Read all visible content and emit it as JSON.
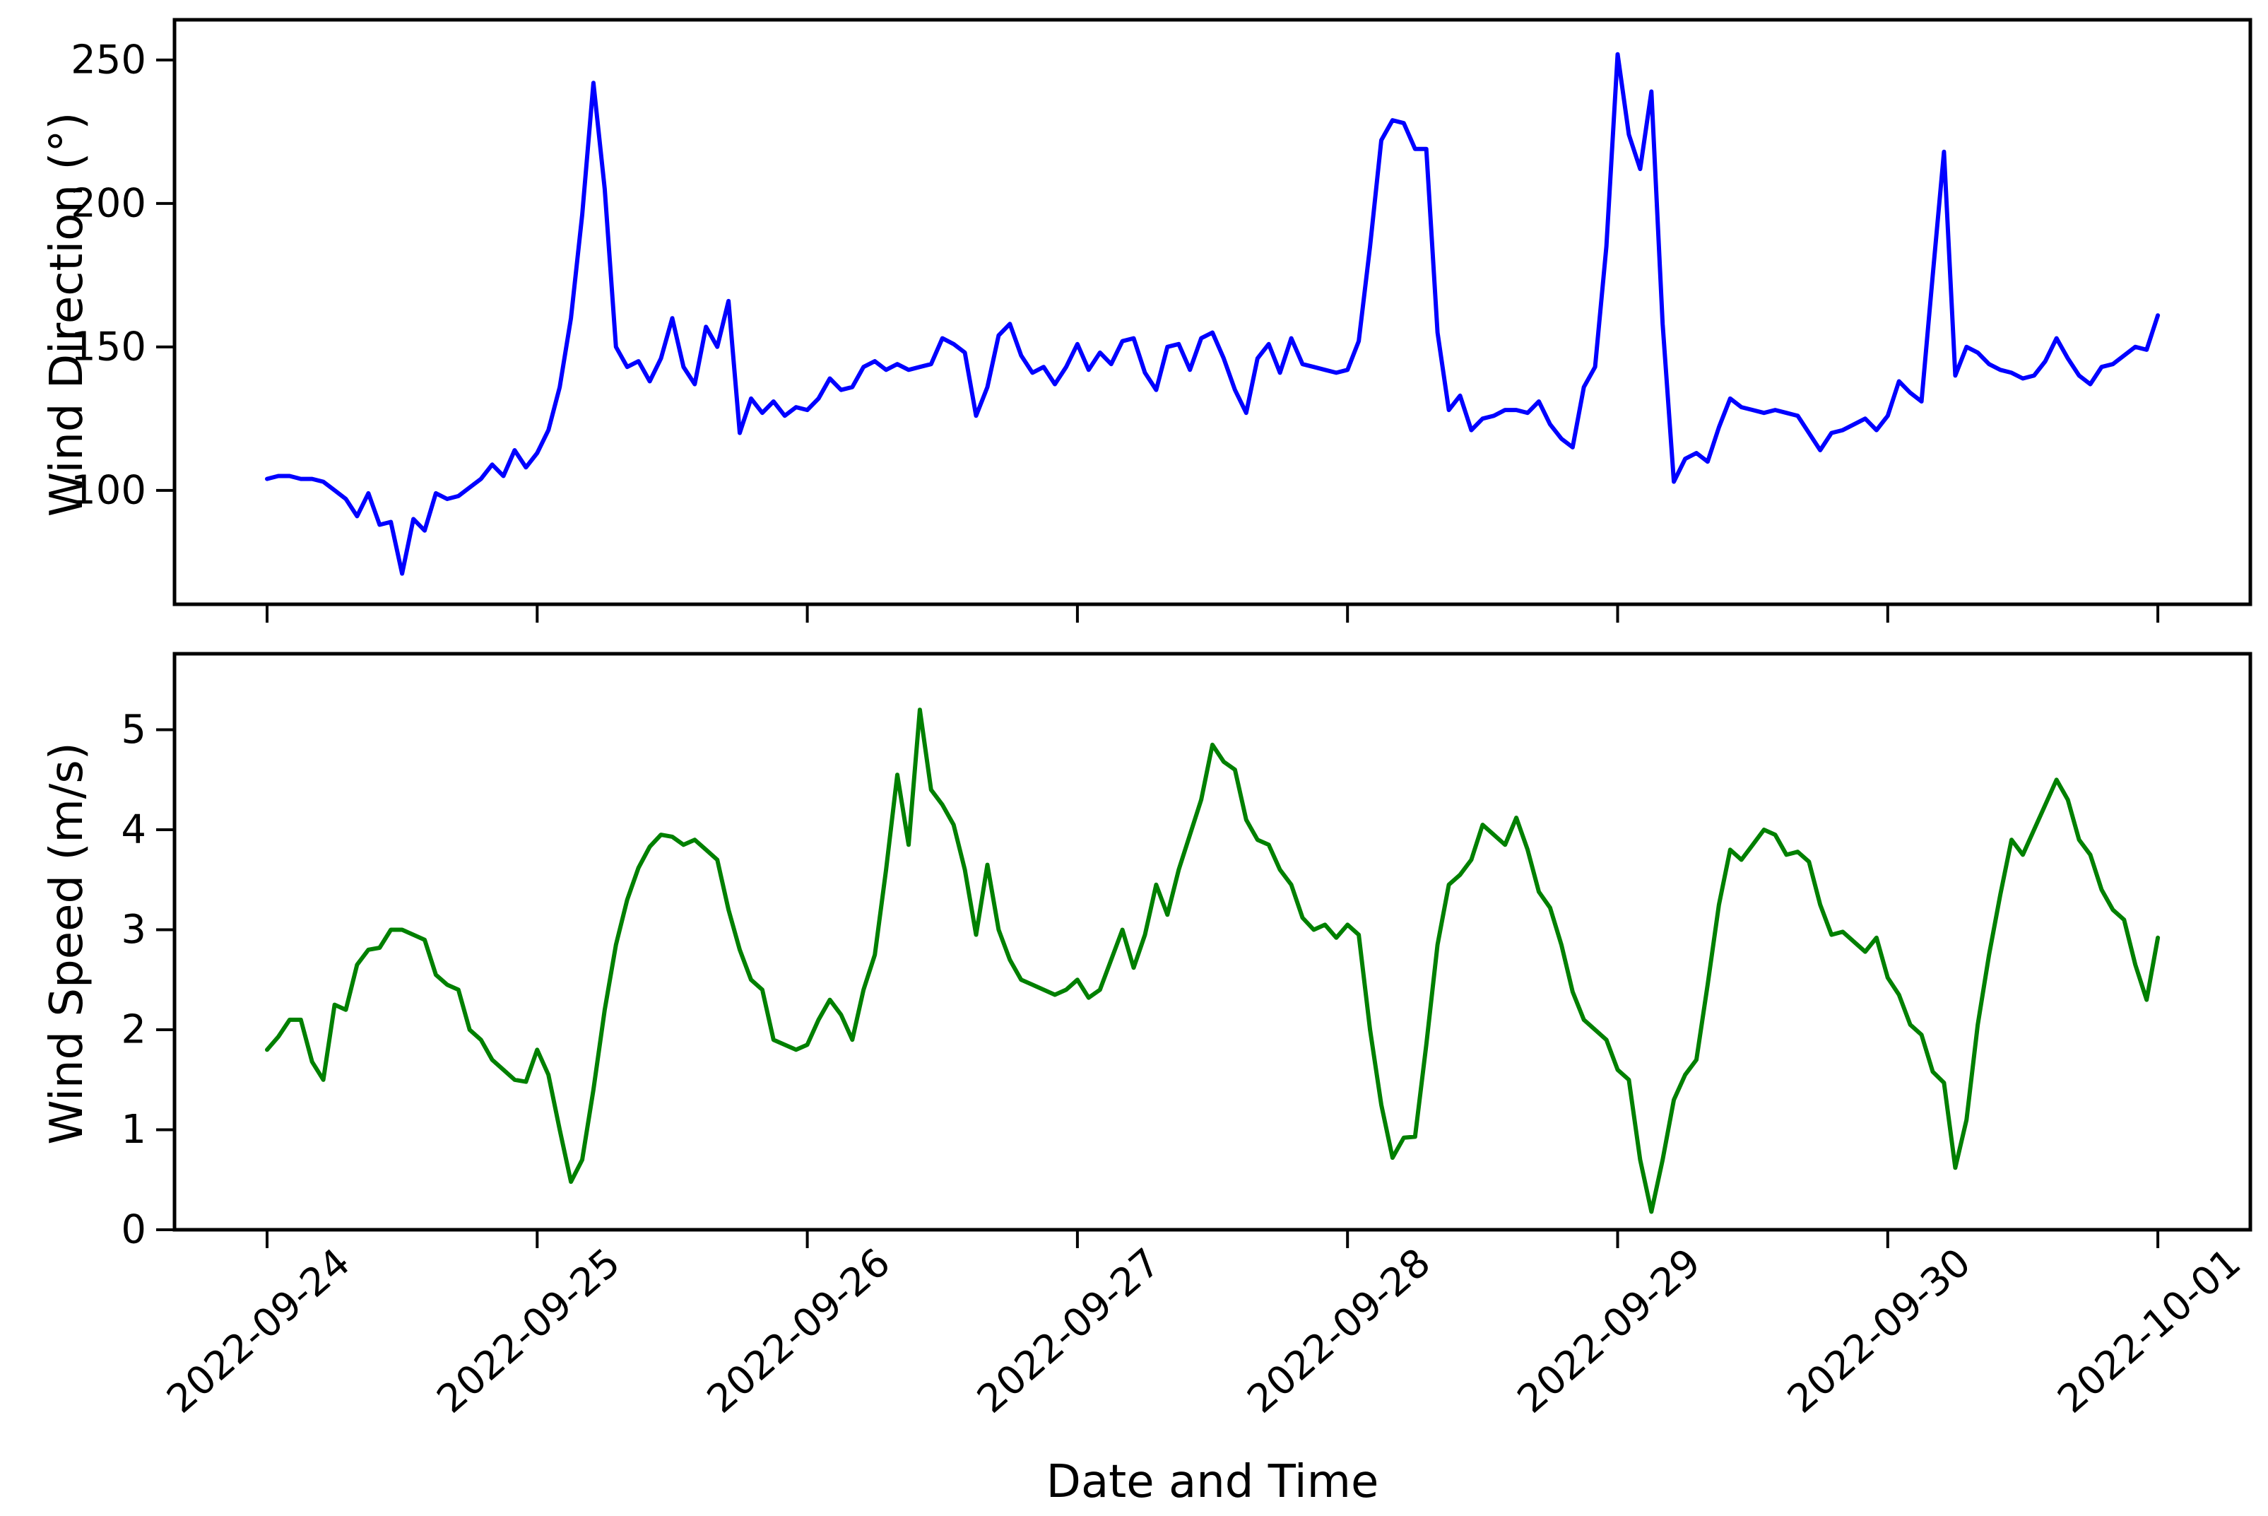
{
  "figure": {
    "background_color": "#ffffff",
    "text_color": "#000000",
    "xlabel": "Date and Time"
  },
  "chart_data": [
    {
      "type": "line",
      "name": "wind-direction",
      "ylabel": "Wind Direction (°)",
      "color": "#0000ff",
      "line_width": 6,
      "x_start": "2022-09-24 00:00",
      "x_end": "2022-10-01 00:00",
      "x_interval_hours": 1,
      "x_tick_labels": [
        "2022-09-24",
        "2022-09-25",
        "2022-09-26",
        "2022-09-27",
        "2022-09-28",
        "2022-09-29",
        "2022-09-30",
        "2022-10-01"
      ],
      "ylim": [
        60.3,
        264
      ],
      "yticks": [
        100,
        150,
        200,
        250
      ],
      "grid": false,
      "values": [
        104,
        105,
        105,
        104,
        104,
        103,
        100,
        97,
        91,
        99,
        88,
        89,
        71,
        90,
        86,
        99,
        97,
        98,
        101,
        104,
        109,
        105,
        114,
        108,
        113,
        121,
        136,
        160,
        196,
        242,
        205,
        150,
        143,
        145,
        138,
        146,
        160,
        143,
        137,
        157,
        150,
        166,
        120,
        132,
        127,
        131,
        126,
        129,
        128,
        132,
        139,
        135,
        136,
        143,
        145,
        142,
        144,
        142,
        143,
        144,
        153,
        151,
        148,
        126,
        136,
        154,
        158,
        147,
        141,
        143,
        137,
        143,
        151,
        142,
        148,
        144,
        152,
        153,
        141,
        135,
        150,
        151,
        142,
        153,
        155,
        146,
        135,
        127,
        146,
        151,
        141,
        153,
        144,
        143,
        142,
        141,
        142,
        152,
        185,
        222,
        229,
        228,
        219,
        219,
        155,
        128,
        133,
        121,
        125,
        126,
        128,
        128,
        127,
        131,
        123,
        118,
        115,
        136,
        143,
        185,
        252,
        224,
        212,
        239,
        158,
        103,
        111,
        113,
        110,
        122,
        132,
        129,
        128,
        127,
        128,
        127,
        126,
        120,
        114,
        120,
        121,
        123,
        125,
        121,
        126,
        138,
        134,
        131,
        175,
        218,
        140,
        150,
        148,
        144,
        142,
        141,
        139,
        140,
        145,
        153,
        146,
        140,
        137,
        143,
        144,
        147,
        150,
        149,
        161
      ]
    },
    {
      "type": "line",
      "name": "wind-speed",
      "ylabel": "Wind Speed (m/s)",
      "xlabel": "Date and Time",
      "color": "#008000",
      "line_width": 6,
      "x_start": "2022-09-24 00:00",
      "x_end": "2022-10-01 00:00",
      "x_interval_hours": 1,
      "x_tick_labels": [
        "2022-09-24",
        "2022-09-25",
        "2022-09-26",
        "2022-09-27",
        "2022-09-28",
        "2022-09-29",
        "2022-09-30",
        "2022-10-01"
      ],
      "ylim": [
        0,
        5.76
      ],
      "yticks": [
        0,
        1,
        2,
        3,
        4,
        5
      ],
      "grid": false,
      "values": [
        1.8,
        1.93,
        2.1,
        2.1,
        1.68,
        1.5,
        2.25,
        2.2,
        2.65,
        2.8,
        2.82,
        3.0,
        3.0,
        2.95,
        2.9,
        2.55,
        2.45,
        2.4,
        2.0,
        1.9,
        1.7,
        1.6,
        1.5,
        1.48,
        1.8,
        1.55,
        1.0,
        0.48,
        0.7,
        1.4,
        2.2,
        2.85,
        3.3,
        3.62,
        3.83,
        3.95,
        3.93,
        3.85,
        3.9,
        3.8,
        3.7,
        3.2,
        2.8,
        2.5,
        2.4,
        1.9,
        1.85,
        1.8,
        1.85,
        2.1,
        2.3,
        2.15,
        1.9,
        2.4,
        2.75,
        3.6,
        4.55,
        3.85,
        5.2,
        4.4,
        4.25,
        4.05,
        3.6,
        2.95,
        3.65,
        3.0,
        2.7,
        2.5,
        2.45,
        2.4,
        2.35,
        2.4,
        2.5,
        2.32,
        2.4,
        2.7,
        3.0,
        2.62,
        2.95,
        3.45,
        3.15,
        3.6,
        3.95,
        4.3,
        4.85,
        4.68,
        4.6,
        4.1,
        3.9,
        3.85,
        3.6,
        3.45,
        3.12,
        3.0,
        3.05,
        2.92,
        3.05,
        2.95,
        2.0,
        1.25,
        0.72,
        0.92,
        0.93,
        1.85,
        2.85,
        3.45,
        3.55,
        3.7,
        4.05,
        3.95,
        3.85,
        4.12,
        3.8,
        3.38,
        3.22,
        2.85,
        2.38,
        2.1,
        2.0,
        1.9,
        1.6,
        1.5,
        0.7,
        0.18,
        0.7,
        1.3,
        1.55,
        1.7,
        2.45,
        3.25,
        3.8,
        3.7,
        3.85,
        4.0,
        3.95,
        3.75,
        3.78,
        3.68,
        3.25,
        2.95,
        2.98,
        2.88,
        2.78,
        2.92,
        2.52,
        2.35,
        2.05,
        1.95,
        1.58,
        1.47,
        0.62,
        1.1,
        2.05,
        2.75,
        3.35,
        3.9,
        3.75,
        4.0,
        4.25,
        4.5,
        4.3,
        3.9,
        3.75,
        3.4,
        3.2,
        3.1,
        2.65,
        2.3,
        2.92
      ]
    }
  ]
}
